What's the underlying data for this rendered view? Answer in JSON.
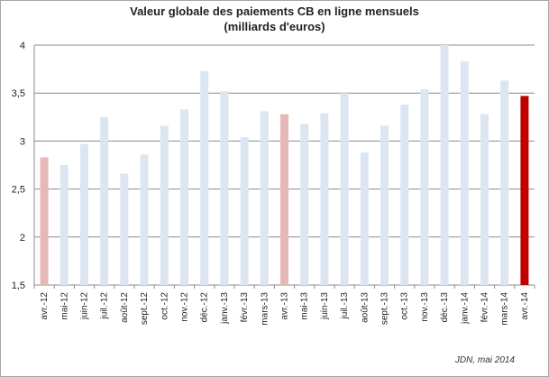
{
  "chart_data": {
    "type": "bar",
    "title_line1": "Valeur globale des paiements CB en ligne mensuels",
    "title_line2": "(milliards d'euros)",
    "xlabel": "",
    "ylabel": "",
    "ylim": [
      1.5,
      4
    ],
    "yticks": [
      "1,5",
      "2",
      "2,5",
      "3",
      "3,5",
      "4"
    ],
    "grid": true,
    "legend": "none",
    "categories": [
      "avr.-12",
      "mai-12",
      "juin-12",
      "juil.-12",
      "août-12",
      "sept.-12",
      "oct.-12",
      "nov.-12",
      "déc.-12",
      "janv.-13",
      "févr.-13",
      "mars-13",
      "avr.-13",
      "mai-13",
      "juin-13",
      "juil.-13",
      "août-13",
      "sept.-13",
      "oct.-13",
      "nov.-13",
      "déc.-13",
      "janv.-14",
      "févr.-14",
      "mars-14",
      "avr.-14"
    ],
    "values": [
      2.83,
      2.75,
      2.97,
      3.25,
      2.66,
      2.86,
      3.16,
      3.33,
      3.73,
      3.52,
      3.04,
      3.31,
      3.28,
      3.18,
      3.29,
      3.5,
      2.88,
      3.16,
      3.38,
      3.54,
      4.0,
      3.83,
      3.28,
      3.63,
      3.47
    ],
    "colors": {
      "default": "#dce6f2",
      "highlight_light": "#e6b9b8",
      "highlight_strong": "#c00000",
      "grid": "#8c8c8c"
    },
    "bar_colors": [
      "highlight_light",
      "default",
      "default",
      "default",
      "default",
      "default",
      "default",
      "default",
      "default",
      "default",
      "default",
      "default",
      "highlight_light",
      "default",
      "default",
      "default",
      "default",
      "default",
      "default",
      "default",
      "default",
      "default",
      "default",
      "default",
      "highlight_strong"
    ]
  },
  "source_note": "JDN, mai 2014"
}
